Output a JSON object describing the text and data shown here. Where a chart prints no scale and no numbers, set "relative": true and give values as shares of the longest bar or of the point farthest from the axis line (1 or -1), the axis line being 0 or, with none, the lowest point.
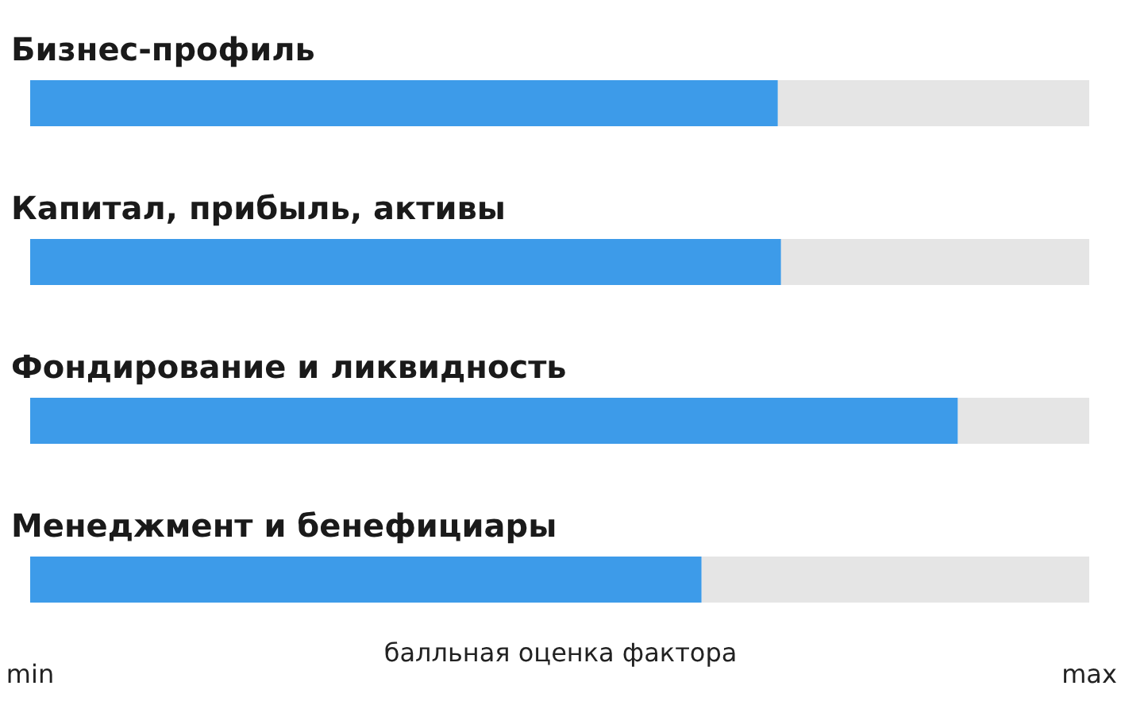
{
  "chart_data": {
    "type": "bar",
    "orientation": "horizontal",
    "relative": true,
    "stacked": true,
    "xlabel": "балльная оценка фактора",
    "categories": [
      "Бизнес-профиль",
      "Капитал, прибыль, активы",
      "Фондирование и ликвидность",
      "Менеджмент и бенефициары"
    ],
    "series": [
      {
        "color": "#3d9be9",
        "values": [
          0.706,
          0.709,
          0.876,
          0.634
        ]
      },
      {
        "color": "#e5e5e5",
        "values": [
          0.294,
          0.291,
          0.124,
          0.366
        ]
      }
    ],
    "annotations": [
      "min",
      "max"
    ]
  }
}
